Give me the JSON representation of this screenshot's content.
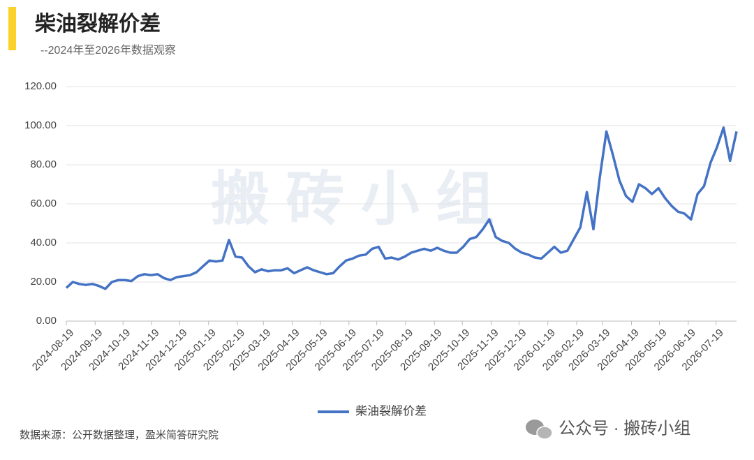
{
  "chart_data": {
    "type": "line",
    "title": "柴油裂解价差",
    "subtitle": "--2024年至2026年数据观察",
    "watermark": "搬 砖 小 组",
    "source": "数据来源：公开数据整理，盈米简答研究院",
    "footer": "公众号 · 搬砖小组",
    "xlim": [
      "2024-08-19",
      "2026-08-10"
    ],
    "xticks": [
      "2024-08-19",
      "2024-09-19",
      "2024-10-19",
      "2024-11-19",
      "2024-12-19",
      "2025-01-19",
      "2025-02-19",
      "2025-03-19",
      "2025-04-19",
      "2025-05-19",
      "2025-06-19",
      "2025-07-19",
      "2025-08-19",
      "2025-09-19",
      "2025-10-19",
      "2025-11-19",
      "2025-12-19",
      "2026-01-19",
      "2026-02-19",
      "2026-03-19",
      "2026-04-19",
      "2026-05-19",
      "2026-06-19",
      "2026-07-19"
    ],
    "ylim": [
      0,
      120
    ],
    "yticks": [
      {
        "value": 0,
        "label": "0.00"
      },
      {
        "value": 20,
        "label": "20.00"
      },
      {
        "value": 40,
        "label": "40.00"
      },
      {
        "value": 60,
        "label": "60.00"
      },
      {
        "value": 80,
        "label": "80.00"
      },
      {
        "value": 100,
        "label": "100.00"
      },
      {
        "value": 120,
        "label": "120.00"
      }
    ],
    "grid": true,
    "legend": "bottom",
    "x": [
      "2024-08-19",
      "2024-08-26",
      "2024-09-02",
      "2024-09-09",
      "2024-09-16",
      "2024-09-23",
      "2024-09-30",
      "2024-10-07",
      "2024-10-14",
      "2024-10-21",
      "2024-10-28",
      "2024-11-04",
      "2024-11-11",
      "2024-11-18",
      "2024-11-25",
      "2024-12-02",
      "2024-12-09",
      "2024-12-16",
      "2024-12-23",
      "2024-12-30",
      "2025-01-06",
      "2025-01-13",
      "2025-01-20",
      "2025-01-27",
      "2025-02-03",
      "2025-02-10",
      "2025-02-17",
      "2025-02-24",
      "2025-03-03",
      "2025-03-10",
      "2025-03-17",
      "2025-03-24",
      "2025-03-31",
      "2025-04-07",
      "2025-04-14",
      "2025-04-21",
      "2025-04-28",
      "2025-05-05",
      "2025-05-12",
      "2025-05-19",
      "2025-05-26",
      "2025-06-02",
      "2025-06-09",
      "2025-06-16",
      "2025-06-23",
      "2025-06-30",
      "2025-07-07",
      "2025-07-14",
      "2025-07-21",
      "2025-07-28",
      "2025-08-04",
      "2025-08-11",
      "2025-08-18",
      "2025-08-25",
      "2025-09-01",
      "2025-09-08",
      "2025-09-15",
      "2025-09-22",
      "2025-09-29",
      "2025-10-06",
      "2025-10-13",
      "2025-10-20",
      "2025-10-27",
      "2025-11-03",
      "2025-11-10",
      "2025-11-17",
      "2025-11-24",
      "2025-12-01",
      "2025-12-08",
      "2025-12-15",
      "2025-12-22",
      "2025-12-29",
      "2026-01-05",
      "2026-01-12",
      "2026-01-19",
      "2026-01-26",
      "2026-02-02",
      "2026-02-09",
      "2026-02-16",
      "2026-02-23",
      "2026-03-02",
      "2026-03-09",
      "2026-03-16",
      "2026-03-23",
      "2026-03-30",
      "2026-04-06",
      "2026-04-13",
      "2026-04-20",
      "2026-04-27",
      "2026-05-04",
      "2026-05-11",
      "2026-05-18",
      "2026-05-25",
      "2026-06-01",
      "2026-06-08",
      "2026-06-15",
      "2026-06-22",
      "2026-06-29",
      "2026-07-06",
      "2026-07-13",
      "2026-07-20",
      "2026-07-27",
      "2026-08-03",
      "2026-08-10"
    ],
    "series": [
      {
        "name": "柴油裂解价差",
        "color": "#4472c4",
        "values": [
          17,
          20,
          19,
          18.5,
          19,
          18,
          16.5,
          20,
          21,
          21,
          20.5,
          23,
          24,
          23.5,
          24,
          22,
          21,
          22.5,
          23,
          23.5,
          25,
          28,
          31,
          30.5,
          31,
          41.5,
          33,
          32.5,
          28,
          25,
          26.5,
          25.5,
          26,
          26,
          27,
          24.5,
          26,
          27.5,
          26,
          25,
          24,
          24.5,
          28,
          31,
          32,
          33.5,
          34,
          37,
          38,
          32,
          32.5,
          31.5,
          33,
          35,
          36,
          37,
          36,
          37.5,
          36,
          35,
          35,
          38,
          42,
          43,
          47,
          52,
          43,
          41,
          40,
          37,
          35,
          34,
          32.5,
          32,
          35,
          38,
          35,
          36,
          42,
          48,
          66,
          47,
          74,
          97,
          85,
          72,
          64,
          61,
          70,
          68,
          65,
          68,
          63,
          59,
          56,
          55,
          52,
          65,
          69,
          81,
          89,
          99,
          82,
          97
        ]
      }
    ]
  }
}
